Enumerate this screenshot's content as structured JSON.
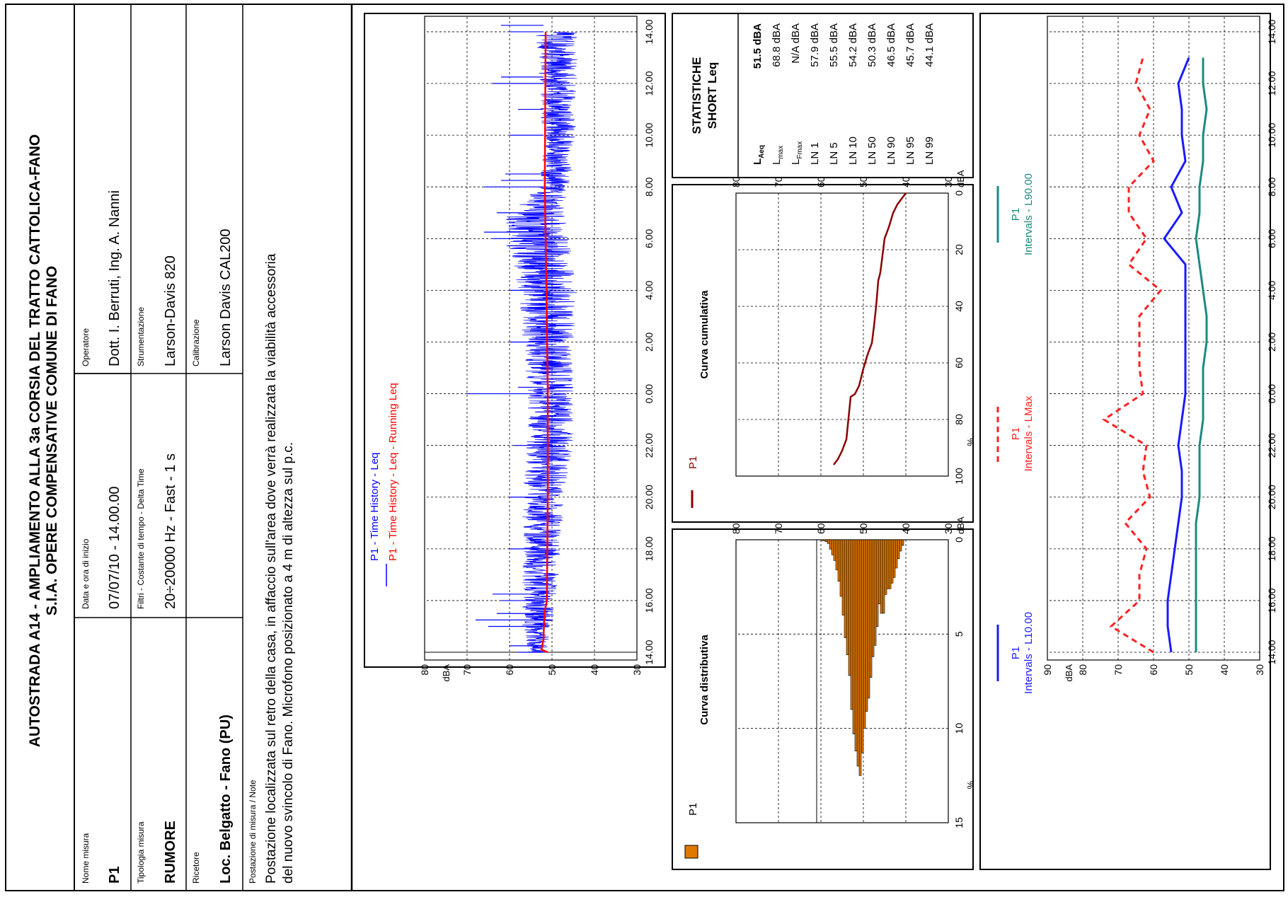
{
  "title": {
    "line1": "AUTOSTRADA A14 - AMPLIAMENTO ALLA 3a CORSIA DEL TRATTO CATTOLICA-FANO",
    "line2": "S.I.A. OPERE COMPENSATIVE COMUNE DI FANO"
  },
  "info": {
    "nome_misura": {
      "label": "Nome misura",
      "value": "P1"
    },
    "data_ora": {
      "label": "Data e ora di inizio",
      "value": "07/07/10 -   14.00.00"
    },
    "operatore": {
      "label": "Operatore",
      "value": "Dott. I. Berruti, Ing. A. Nanni"
    },
    "tipologia": {
      "label": "Tipologia misura",
      "value": "RUMORE"
    },
    "filtri": {
      "label": "Filtri - Costante di tempo - Delta Time",
      "value": "20÷20000 Hz - Fast - 1 s"
    },
    "strumentazione": {
      "label": "Strumentazione",
      "value": "Larson-Davis 820"
    },
    "ricettore": {
      "label": "Ricetore",
      "value": "Loc. Belgatto - Fano (PU)"
    },
    "calibrazione": {
      "label": "Calibrazione",
      "value": "Larson Davis CAL200"
    },
    "postazione": {
      "label": "Postazione di misura / Note",
      "line1": "Postazione localizzata sul retro della casa, in affaccio sull'area dove verrà realizzata la viabilità accessoria",
      "line2": "del nuovo svincolo di Fano. Microfono posizionato a 4 m di altezza sul p.c."
    }
  },
  "statistics": {
    "title1": "STATISTICHE",
    "title2": "SHORT Leq",
    "rows": [
      {
        "label": "L",
        "sub": "Aeq",
        "value": "51.5 dBA",
        "bold": true
      },
      {
        "label": "L",
        "sub": "max",
        "value": "68.8 dBA",
        "bold": false
      },
      {
        "label": "L",
        "sub": "Fmax",
        "value": "N/A dBA",
        "bold": false
      },
      {
        "label": "LN 1",
        "sub": "",
        "value": "57.9 dBA",
        "bold": false
      },
      {
        "label": "LN 5",
        "sub": "",
        "value": "55.5 dBA",
        "bold": false
      },
      {
        "label": "LN 10",
        "sub": "",
        "value": "54.2 dBA",
        "bold": false
      },
      {
        "label": "LN 50",
        "sub": "",
        "value": "50.3 dBA",
        "bold": false
      },
      {
        "label": "LN 90",
        "sub": "",
        "value": "46.5 dBA",
        "bold": false
      },
      {
        "label": "LN 95",
        "sub": "",
        "value": "45.7 dBA",
        "bold": false
      },
      {
        "label": "LN 99",
        "sub": "",
        "value": "44.1 dBA",
        "bold": false
      }
    ]
  },
  "colors": {
    "leq": "#0000ff",
    "running": "#ff0000",
    "histogram": "#e07800",
    "cumulative": "#8b0000",
    "lmax": "#ff2020",
    "l10": "#1a1aff",
    "l90": "#1a8a80"
  },
  "chart_data": [
    {
      "type": "line",
      "name": "time_history",
      "legend": [
        "P1 - Time History - Leq",
        "P1 - Time History - Leq - Running Leq"
      ],
      "ylabel": "dBA",
      "ylim": [
        30,
        80
      ],
      "yticks": [
        "30",
        "40",
        "50",
        "60",
        "70",
        "80"
      ],
      "x_start_hours": 13.7,
      "x_end_hours": 14.2,
      "xticks": [
        "14.00",
        "16.00",
        "18.00",
        "20.00",
        "22.00",
        "0.00",
        "2.00",
        "4.00",
        "6.00",
        "8.00",
        "10.00",
        "12.00",
        "14.00"
      ],
      "xtick_hours": [
        14,
        16,
        18,
        20,
        22,
        24,
        26,
        28,
        30,
        32,
        34,
        36,
        38
      ],
      "leq_band": [
        {
          "h": 14.0,
          "lo": 51,
          "hi": 56,
          "spikes": [
            58,
            60
          ]
        },
        {
          "h": 15.0,
          "lo": 50,
          "hi": 57,
          "spikes": [
            65,
            68,
            63
          ]
        },
        {
          "h": 16.0,
          "lo": 49,
          "hi": 57,
          "spikes": [
            62,
            64
          ]
        },
        {
          "h": 18.0,
          "lo": 48,
          "hi": 57,
          "spikes": [
            60
          ]
        },
        {
          "h": 20.0,
          "lo": 47,
          "hi": 57,
          "spikes": [
            60
          ]
        },
        {
          "h": 22.0,
          "lo": 45,
          "hi": 56,
          "spikes": [
            59
          ]
        },
        {
          "h": 24.0,
          "lo": 45,
          "hi": 56,
          "spikes": [
            70,
            58
          ]
        },
        {
          "h": 26.0,
          "lo": 45,
          "hi": 57,
          "spikes": [
            60
          ]
        },
        {
          "h": 28.0,
          "lo": 44,
          "hi": 58,
          "spikes": [
            60
          ]
        },
        {
          "h": 30.0,
          "lo": 46,
          "hi": 61,
          "spikes": [
            64,
            66
          ]
        },
        {
          "h": 31.0,
          "lo": 47,
          "hi": 61,
          "spikes": [
            63
          ]
        },
        {
          "h": 32.0,
          "lo": 46,
          "hi": 53,
          "spikes": [
            66,
            62,
            61
          ]
        },
        {
          "h": 34.0,
          "lo": 44,
          "hi": 52,
          "spikes": [
            60
          ]
        },
        {
          "h": 35.0,
          "lo": 45,
          "hi": 53,
          "spikes": [
            58
          ]
        },
        {
          "h": 36.0,
          "lo": 44,
          "hi": 53,
          "spikes": [
            64,
            62
          ]
        },
        {
          "h": 38.0,
          "lo": 44,
          "hi": 54,
          "spikes": [
            60,
            62
          ]
        }
      ],
      "running_leq": {
        "x": [
          14.0,
          14.1,
          14.5,
          15.5,
          16,
          20,
          24,
          28,
          32,
          38
        ],
        "y": [
          51,
          52.5,
          52,
          51.8,
          51.2,
          51.0,
          51.0,
          51.3,
          51.7,
          51.5
        ]
      }
    },
    {
      "type": "bar",
      "name": "curva_distributiva",
      "title": "Curva distributiva",
      "legend": [
        "P1"
      ],
      "xlabel": "dBA",
      "xlim": [
        30,
        80
      ],
      "xticks": [
        "30",
        "40",
        "50",
        "60",
        "70",
        "80"
      ],
      "ylabel": "%",
      "ylim": [
        0,
        15
      ],
      "yticks": [
        "0",
        "5",
        "10",
        "15"
      ],
      "bin_start": 40.5,
      "bin_width": 0.5,
      "values": [
        0.3,
        0.6,
        1.0,
        1.5,
        2.0,
        2.3,
        2.6,
        2.6,
        2.9,
        3.9,
        3.9,
        3.4,
        4.6,
        5.6,
        6.2,
        7.3,
        8.4,
        9.1,
        10.0,
        11.3,
        12.5,
        12.0,
        11.2,
        10.3,
        9.0,
        7.2,
        6.1,
        5.2,
        4.0,
        3.0,
        2.2,
        1.6,
        1.1,
        0.8,
        0.5,
        0.2,
        0.1,
        0.05,
        0.05
      ]
    },
    {
      "type": "line",
      "name": "curva_cumulativa",
      "title": "Curva cumulativa",
      "legend": [
        "P1"
      ],
      "xlabel": "dBA",
      "xlim": [
        30,
        80
      ],
      "xticks": [
        "30",
        "40",
        "50",
        "60",
        "70",
        "80"
      ],
      "ylabel": "%",
      "ylim": [
        0,
        100
      ],
      "yticks": [
        "0",
        "20",
        "40",
        "60",
        "80",
        "100"
      ],
      "x": [
        40,
        41,
        42,
        43,
        44,
        45,
        46,
        46.5,
        47,
        47.5,
        48,
        49,
        50,
        51,
        52,
        53,
        54,
        55,
        56,
        57
      ],
      "y": [
        0,
        2,
        4,
        7,
        12,
        16,
        28,
        31,
        40,
        47,
        53,
        57,
        62,
        68,
        71,
        72,
        87,
        91,
        94,
        96
      ]
    },
    {
      "type": "line",
      "name": "intervals",
      "ylabel": "dBA",
      "ylim": [
        30,
        90
      ],
      "yticks": [
        "30",
        "40",
        "50",
        "60",
        "70",
        "80",
        "90"
      ],
      "xticks": [
        "14.00",
        "16.00",
        "18.00",
        "20.00",
        "22.00",
        "0.00",
        "2.00",
        "4.00",
        "6.00",
        "8.00",
        "10.00",
        "12.00",
        "14.00"
      ],
      "xtick_hours": [
        14,
        16,
        18,
        20,
        22,
        24,
        26,
        28,
        30,
        32,
        34,
        36,
        38
      ],
      "series": [
        {
          "name": "P1\nIntervals - L10.00",
          "dash": false,
          "x": [
            14,
            15,
            16,
            17,
            18,
            19,
            20,
            21,
            22,
            23,
            24,
            25,
            26,
            27,
            28,
            29,
            30,
            31,
            32,
            33,
            34,
            35,
            36,
            37
          ],
          "y": [
            55,
            56,
            56,
            55,
            54,
            53,
            52,
            52,
            53,
            52,
            51,
            51,
            51,
            51,
            51,
            51,
            57,
            52,
            55,
            51,
            52,
            52,
            53,
            50
          ]
        },
        {
          "name": "P1\nIntervals - LMax",
          "dash": true,
          "x": [
            14,
            15,
            16,
            17,
            18,
            19,
            20,
            21,
            22,
            23,
            24,
            25,
            26,
            27,
            28,
            29,
            30,
            31,
            32,
            33,
            34,
            35,
            36,
            37
          ],
          "y": [
            60,
            72,
            64,
            64,
            62,
            68,
            61,
            63,
            62,
            74,
            63,
            64,
            64,
            64,
            58,
            67,
            62,
            67,
            67,
            60,
            64,
            61,
            65,
            63
          ]
        },
        {
          "name": "P1\nIntervals - L90.00",
          "dash": false,
          "x": [
            14,
            15,
            16,
            17,
            18,
            19,
            20,
            21,
            22,
            23,
            24,
            25,
            26,
            27,
            28,
            29,
            30,
            31,
            32,
            33,
            34,
            35,
            36,
            37
          ],
          "y": [
            48,
            48,
            48,
            48,
            48,
            48,
            47,
            47,
            47,
            46,
            46,
            46,
            45,
            45,
            46,
            47,
            48,
            47,
            47,
            46,
            46,
            45,
            46,
            46
          ]
        }
      ]
    }
  ]
}
